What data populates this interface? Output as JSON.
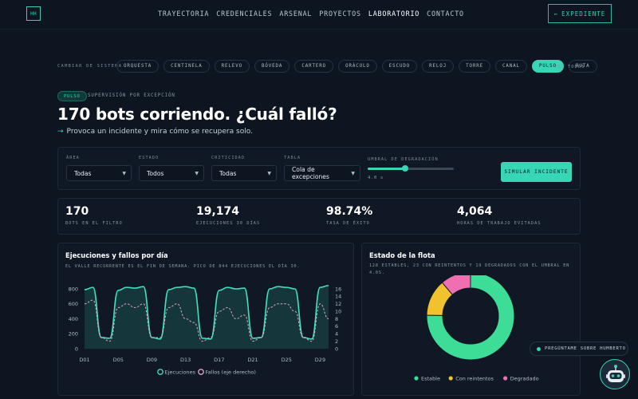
{
  "logo": "HH",
  "nav": [
    {
      "label": "TRAYECTORIA",
      "active": false
    },
    {
      "label": "CREDENCIALES",
      "active": false
    },
    {
      "label": "ARSENAL",
      "active": false
    },
    {
      "label": "PROYECTOS",
      "active": false
    },
    {
      "label": "LABORATORIO",
      "active": true
    },
    {
      "label": "CONTACTO",
      "active": false
    }
  ],
  "expediente_label": "EXPEDIENTE",
  "expediente_arrow": "←",
  "systems": {
    "label": "CAMBIAR DE SISTEMA",
    "items": [
      "ORQUESTA",
      "CENTINELA",
      "RELEVO",
      "BÓVEDA",
      "CARTERO",
      "ORÁCULO",
      "ESCUDO",
      "RELOJ",
      "TORRE",
      "CANAL",
      "PULSO",
      "RUTA"
    ],
    "active": "PULSO",
    "view_all": "↑ VER TODOS"
  },
  "hero": {
    "badge": "PULSO",
    "badge_sub": "SUPERVISIÓN POR EXCEPCIÓN",
    "title": "170 bots corriendo. ¿Cuál falló?",
    "arrow": "→",
    "subtitle": "Provoca un incidente y mira cómo se recupera solo."
  },
  "filters": {
    "area": {
      "label": "ÁREA",
      "value": "Todas"
    },
    "estado": {
      "label": "ESTADO",
      "value": "Todos"
    },
    "criticidad": {
      "label": "CRITICIDAD",
      "value": "Todas"
    },
    "tabla": {
      "label": "TABLA",
      "value": "Cola de excepciones"
    },
    "umbral": {
      "label": "UMBRAL DE DEGRADACIÓN",
      "value": "4.0 s",
      "fraction": 0.44
    },
    "simulate_label": "SIMULAR INCIDENTE"
  },
  "stats": [
    {
      "value": "170",
      "label": "BOTS EN EL FILTRO"
    },
    {
      "value": "19,174",
      "label": "EJECUCIONES 30 DÍAS"
    },
    {
      "value": "98.74%",
      "label": "TASA DE ÉXITO"
    },
    {
      "value": "4,064",
      "label": "HORAS DE TRABAJO EVITADAS"
    }
  ],
  "runs_chart": {
    "title": "Ejecuciones y fallos por día",
    "subtitle": "EL VALLE RECURRENTE ES EL FIN DE SEMANA. PICO DE 844 EJECUCIONES EL DÍA 30.",
    "legend_runs": "Ejecuciones",
    "legend_fails": "Fallos (eje derecho)"
  },
  "fleet_chart": {
    "title": "Estado de la flota",
    "subtitle": "128 ESTABLES, 23 CON REINTENTOS Y 19 DEGRADADOS CON EL UMBRAL EN 4.0S."
  },
  "chart_data": [
    {
      "type": "area",
      "categories": [
        "D01",
        "D02",
        "D03",
        "D04",
        "D05",
        "D06",
        "D07",
        "D08",
        "D09",
        "D10",
        "D11",
        "D12",
        "D13",
        "D14",
        "D15",
        "D16",
        "D17",
        "D18",
        "D19",
        "D20",
        "D21",
        "D22",
        "D23",
        "D24",
        "D25",
        "D26",
        "D27",
        "D28",
        "D29",
        "D30"
      ],
      "x_tick_labels": [
        "D01",
        "D05",
        "D09",
        "D13",
        "D17",
        "D21",
        "D25",
        "D29"
      ],
      "series": [
        {
          "name": "Ejecuciones",
          "axis": "left",
          "values": [
            790,
            820,
            150,
            140,
            780,
            820,
            810,
            830,
            150,
            130,
            790,
            820,
            830,
            810,
            140,
            130,
            780,
            820,
            800,
            810,
            140,
            150,
            800,
            830,
            820,
            800,
            150,
            130,
            820,
            844
          ]
        },
        {
          "name": "Fallos (eje derecho)",
          "axis": "right",
          "values": [
            12,
            13,
            3,
            2,
            11,
            12,
            11,
            12,
            3,
            3,
            11,
            12,
            8,
            7,
            2,
            3,
            10,
            11,
            8,
            9,
            2,
            3,
            11,
            12,
            12,
            10,
            3,
            2,
            12,
            8
          ]
        }
      ],
      "ylim_left": [
        0,
        800
      ],
      "yticks_left": [
        0,
        200,
        400,
        600,
        800
      ],
      "ylim_right": [
        0,
        16
      ],
      "yticks_right": [
        0,
        2,
        4,
        6,
        8,
        10,
        12,
        14,
        16
      ],
      "grid": false,
      "legend": "bottom"
    },
    {
      "type": "pie",
      "donut": true,
      "labels": [
        "Estable",
        "Con reintentos",
        "Degradado"
      ],
      "values": [
        128,
        23,
        19
      ],
      "colors": [
        "#3ddc97",
        "#f2c12e",
        "#ef6fb2"
      ],
      "legend": "bottom"
    }
  ],
  "assistant": {
    "ask_label": "PREGÚNTAME SOBRE HUMBERTO"
  }
}
